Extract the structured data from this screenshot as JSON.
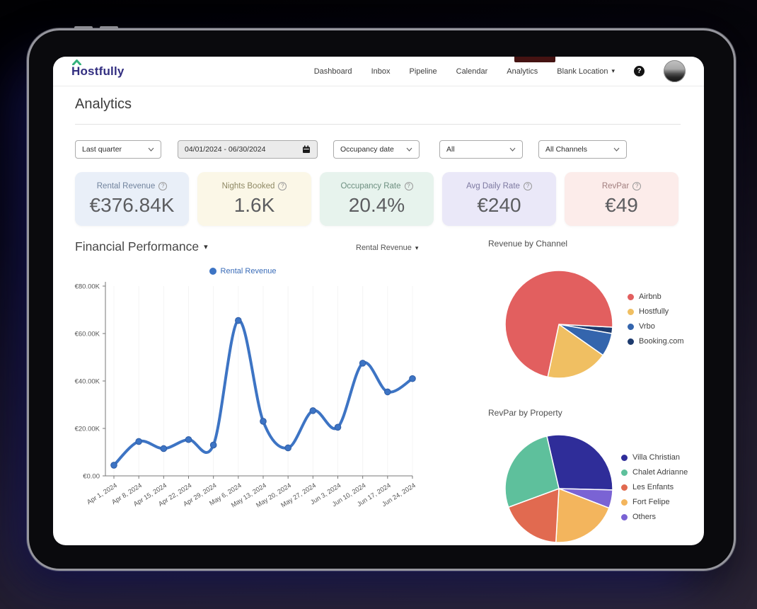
{
  "icons": {
    "chevron_down": "▾",
    "help": "?",
    "tooltip": "?"
  },
  "nav": {
    "logo": "Hostfully",
    "items": [
      {
        "label": "Dashboard"
      },
      {
        "label": "Inbox"
      },
      {
        "label": "Pipeline"
      },
      {
        "label": "Calendar"
      },
      {
        "label": "Analytics"
      }
    ],
    "location_label": "Blank Location"
  },
  "page": {
    "title": "Analytics"
  },
  "filters": {
    "period": "Last quarter",
    "date_range": "04/01/2024 - 06/30/2024",
    "date_type": "Occupancy date",
    "property": "All",
    "channels": "All Channels"
  },
  "kpis": [
    {
      "label": "Rental Revenue",
      "value": "€376.84K",
      "bg": "#e9eff8",
      "label_color": "#71839d"
    },
    {
      "label": "Nights Booked",
      "value": "1.6K",
      "bg": "#fbf7e7",
      "label_color": "#8f8964"
    },
    {
      "label": "Occupancy Rate",
      "value": "20.4%",
      "bg": "#e7f3ed",
      "label_color": "#6d8f80"
    },
    {
      "label": "Avg Daily Rate",
      "value": "€240",
      "bg": "#eae8f8",
      "label_color": "#7d79a1"
    },
    {
      "label": "RevPar",
      "value": "€49",
      "bg": "#fcecea",
      "label_color": "#a17e7e"
    }
  ],
  "financial": {
    "selector": "Rental Revenue"
  },
  "chart_data": [
    {
      "type": "line",
      "title": "Financial Performance",
      "color": "#3d74c4",
      "categories": [
        "Apr 1, 2024",
        "Apr 8, 2024",
        "Apr 15, 2024",
        "Apr 22, 2024",
        "Apr 29, 2024",
        "May 6, 2024",
        "May 13, 2024",
        "May 20, 2024",
        "May 27, 2024",
        "Jun 3, 2024",
        "Jun 10, 2024",
        "Jun 17, 2024",
        "Jun 24, 2024"
      ],
      "series": [
        {
          "name": "Rental Revenue",
          "values": [
            4500,
            14500,
            11500,
            15300,
            13000,
            65500,
            23000,
            11800,
            27500,
            20500,
            47500,
            35400,
            41000
          ]
        }
      ],
      "ylim": [
        0,
        80000
      ],
      "yticks": [
        {
          "v": 0,
          "label": "€0.00"
        },
        {
          "v": 20000,
          "label": "€20.00K"
        },
        {
          "v": 40000,
          "label": "€40.00K"
        },
        {
          "v": 60000,
          "label": "€60.00K"
        },
        {
          "v": 80000,
          "label": "€80.00K"
        }
      ],
      "grid": true,
      "legend_position": "top"
    },
    {
      "type": "pie",
      "title": "Revenue by Channel",
      "start_angle": 93,
      "draw_order": [
        3,
        2,
        1,
        0
      ],
      "slices": [
        {
          "name": "Airbnb",
          "value": 72.5,
          "color": "#e25f5f"
        },
        {
          "name": "Hostfully",
          "value": 18.6,
          "color": "#f0bf62"
        },
        {
          "name": "Vrbo",
          "value": 7.0,
          "color": "#3465ad"
        },
        {
          "name": "Booking.com",
          "value": 1.9,
          "color": "#1d3a6d"
        }
      ],
      "legend_position": "right"
    },
    {
      "type": "pie",
      "title": "RevPar by Property",
      "start_angle": 347,
      "draw_order": [
        0,
        4,
        3,
        2,
        1
      ],
      "slices": [
        {
          "name": "Villa Christian",
          "value": 29.0,
          "color": "#2f2d99"
        },
        {
          "name": "Chalet Adrianne",
          "value": 27.0,
          "color": "#5ec09c"
        },
        {
          "name": "Les Enfants",
          "value": 18.5,
          "color": "#e16a50"
        },
        {
          "name": "Fort Felipe",
          "value": 20.0,
          "color": "#f3b55d"
        },
        {
          "name": "Others",
          "value": 5.5,
          "color": "#7a63d4"
        }
      ],
      "legend_position": "right"
    }
  ]
}
